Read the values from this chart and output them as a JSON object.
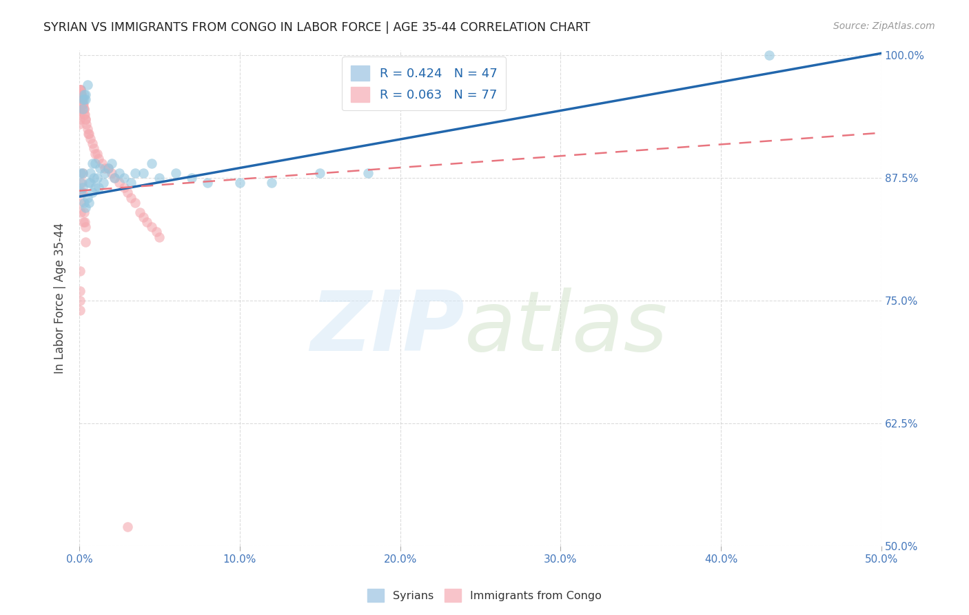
{
  "title": "SYRIAN VS IMMIGRANTS FROM CONGO IN LABOR FORCE | AGE 35-44 CORRELATION CHART",
  "source": "Source: ZipAtlas.com",
  "ylabel": "In Labor Force | Age 35-44",
  "xlim": [
    0.0,
    0.5
  ],
  "ylim": [
    0.5,
    1.005
  ],
  "yticks": [
    0.5,
    0.625,
    0.75,
    0.875,
    1.0
  ],
  "ytick_labels": [
    "50.0%",
    "62.5%",
    "75.0%",
    "87.5%",
    "100.0%"
  ],
  "xticks": [
    0.0,
    0.1,
    0.2,
    0.3,
    0.4,
    0.5
  ],
  "xtick_labels": [
    "0.0%",
    "10.0%",
    "20.0%",
    "30.0%",
    "40.0%",
    "50.0%"
  ],
  "syrian_R": 0.424,
  "syrian_N": 47,
  "congo_R": 0.063,
  "congo_N": 77,
  "syrian_color": "#92c5de",
  "congo_color": "#f4a9b0",
  "syrian_line_color": "#2166ac",
  "congo_line_color": "#e8747e",
  "axis_color": "#4477bb",
  "grid_color": "#cccccc",
  "legend_labels": [
    "Syrians",
    "Immigrants from Congo"
  ],
  "syrian_x": [
    0.001,
    0.001,
    0.001,
    0.002,
    0.002,
    0.002,
    0.002,
    0.003,
    0.003,
    0.003,
    0.004,
    0.004,
    0.004,
    0.005,
    0.005,
    0.006,
    0.006,
    0.007,
    0.007,
    0.008,
    0.008,
    0.009,
    0.01,
    0.01,
    0.011,
    0.012,
    0.013,
    0.015,
    0.016,
    0.018,
    0.02,
    0.022,
    0.025,
    0.028,
    0.032,
    0.035,
    0.04,
    0.045,
    0.05,
    0.06,
    0.07,
    0.08,
    0.1,
    0.12,
    0.15,
    0.18,
    0.43
  ],
  "syrian_y": [
    0.88,
    0.87,
    0.86,
    0.955,
    0.945,
    0.88,
    0.865,
    0.96,
    0.955,
    0.85,
    0.96,
    0.955,
    0.845,
    0.97,
    0.855,
    0.87,
    0.85,
    0.88,
    0.87,
    0.89,
    0.86,
    0.875,
    0.89,
    0.865,
    0.875,
    0.865,
    0.885,
    0.87,
    0.88,
    0.885,
    0.89,
    0.875,
    0.88,
    0.875,
    0.87,
    0.88,
    0.88,
    0.89,
    0.875,
    0.88,
    0.875,
    0.87,
    0.87,
    0.87,
    0.88,
    0.88,
    1.0
  ],
  "congo_x": [
    0.0002,
    0.0002,
    0.0002,
    0.0003,
    0.0003,
    0.0003,
    0.0004,
    0.0004,
    0.0005,
    0.0005,
    0.0005,
    0.0006,
    0.0006,
    0.0007,
    0.0008,
    0.0008,
    0.0009,
    0.001,
    0.001,
    0.0011,
    0.0012,
    0.0013,
    0.0014,
    0.0015,
    0.0016,
    0.0018,
    0.002,
    0.0022,
    0.0025,
    0.0028,
    0.003,
    0.0032,
    0.0035,
    0.0038,
    0.004,
    0.0045,
    0.005,
    0.0055,
    0.006,
    0.007,
    0.008,
    0.009,
    0.01,
    0.011,
    0.012,
    0.014,
    0.016,
    0.018,
    0.02,
    0.022,
    0.025,
    0.028,
    0.03,
    0.032,
    0.035,
    0.038,
    0.04,
    0.042,
    0.045,
    0.048,
    0.05,
    0.002,
    0.002,
    0.0025,
    0.003,
    0.0035,
    0.004,
    0.004,
    0.0015,
    0.0015,
    0.001,
    0.001,
    0.0005,
    0.0005,
    0.0003,
    0.0003,
    0.03
  ],
  "congo_y": [
    0.96,
    0.94,
    0.93,
    0.955,
    0.945,
    0.935,
    0.96,
    0.95,
    0.965,
    0.955,
    0.945,
    0.965,
    0.955,
    0.96,
    0.965,
    0.96,
    0.96,
    0.965,
    0.96,
    0.96,
    0.955,
    0.955,
    0.96,
    0.955,
    0.95,
    0.955,
    0.95,
    0.95,
    0.95,
    0.945,
    0.945,
    0.94,
    0.94,
    0.935,
    0.935,
    0.93,
    0.925,
    0.92,
    0.92,
    0.915,
    0.91,
    0.905,
    0.9,
    0.9,
    0.895,
    0.89,
    0.885,
    0.885,
    0.88,
    0.875,
    0.87,
    0.865,
    0.86,
    0.855,
    0.85,
    0.84,
    0.835,
    0.83,
    0.825,
    0.82,
    0.815,
    0.88,
    0.86,
    0.83,
    0.84,
    0.83,
    0.825,
    0.81,
    0.87,
    0.86,
    0.85,
    0.84,
    0.78,
    0.76,
    0.75,
    0.74,
    0.52
  ]
}
